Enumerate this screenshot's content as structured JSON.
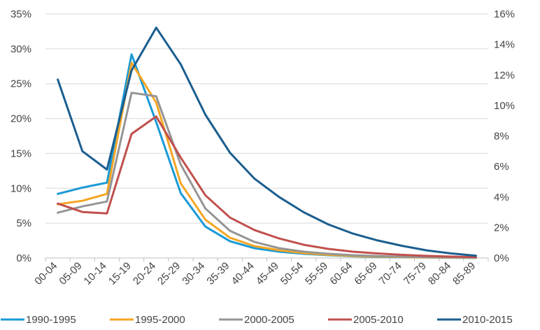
{
  "chart_data": {
    "type": "line",
    "categories": [
      "00-04",
      "05-09",
      "10-14",
      "15-19",
      "20-24",
      "25-29",
      "30-34",
      "35-39",
      "40-44",
      "45-49",
      "50-54",
      "55-59",
      "60-64",
      "65-69",
      "70-74",
      "75-79",
      "80-84",
      "85-89"
    ],
    "y_left": {
      "min": 0,
      "max": 35,
      "ticks": [
        0,
        5,
        10,
        15,
        20,
        25,
        30,
        35
      ],
      "tick_labels": [
        "0%",
        "5%",
        "10%",
        "15%",
        "20%",
        "25%",
        "30%",
        "35%"
      ]
    },
    "y_right": {
      "min": 0,
      "max": 16,
      "ticks": [
        0,
        2,
        4,
        6,
        8,
        10,
        12,
        14,
        16
      ],
      "tick_labels": [
        "0%",
        "2%",
        "4%",
        "6%",
        "8%",
        "10%",
        "12%",
        "14%",
        "16%"
      ]
    },
    "grid": true,
    "legend_position": "bottom",
    "series": [
      {
        "name": "1990-1995",
        "color": "#1b9ad6",
        "axis": "left",
        "values": [
          9.2,
          10.1,
          10.8,
          29.2,
          19.5,
          9.3,
          4.5,
          2.4,
          1.4,
          0.9,
          0.6,
          0.4,
          0.25,
          0.15,
          0.1,
          0.07,
          0.04,
          0.02
        ]
      },
      {
        "name": "1995-2000",
        "color": "#f5a623",
        "axis": "left",
        "values": [
          7.7,
          8.2,
          9.2,
          28.0,
          22.3,
          10.7,
          5.5,
          2.9,
          1.7,
          1.1,
          0.7,
          0.45,
          0.3,
          0.2,
          0.13,
          0.08,
          0.05,
          0.03
        ]
      },
      {
        "name": "2000-2005",
        "color": "#959595",
        "axis": "left",
        "values": [
          6.5,
          7.4,
          8.1,
          23.7,
          23.2,
          13.4,
          7.1,
          3.9,
          2.3,
          1.4,
          0.9,
          0.6,
          0.4,
          0.27,
          0.18,
          0.12,
          0.07,
          0.04
        ]
      },
      {
        "name": "2005-2010",
        "color": "#c0504d",
        "axis": "left",
        "values": [
          7.8,
          6.6,
          6.4,
          17.8,
          20.3,
          14.4,
          9.0,
          5.8,
          4.0,
          2.8,
          1.9,
          1.3,
          0.9,
          0.65,
          0.45,
          0.3,
          0.2,
          0.12
        ]
      },
      {
        "name": "2010-2015",
        "color": "#1a5e8f",
        "axis": "right",
        "values": [
          11.7,
          7.0,
          5.8,
          12.3,
          15.1,
          12.7,
          9.4,
          6.9,
          5.2,
          4.0,
          3.0,
          2.2,
          1.6,
          1.15,
          0.8,
          0.5,
          0.3,
          0.15
        ]
      }
    ]
  }
}
